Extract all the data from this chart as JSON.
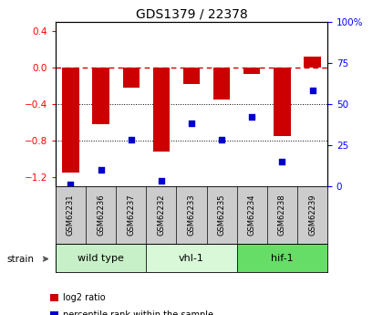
{
  "title": "GDS1379 / 22378",
  "samples": [
    "GSM62231",
    "GSM62236",
    "GSM62237",
    "GSM62232",
    "GSM62233",
    "GSM62235",
    "GSM62234",
    "GSM62238",
    "GSM62239"
  ],
  "log2_ratios": [
    -1.15,
    -0.62,
    -0.22,
    -0.92,
    -0.18,
    -0.35,
    -0.07,
    -0.75,
    0.12
  ],
  "percentile_ranks": [
    1,
    10,
    28,
    3,
    38,
    28,
    42,
    15,
    58
  ],
  "groups": [
    {
      "label": "wild type",
      "start": 0,
      "end": 3,
      "color": "#c8f0c8"
    },
    {
      "label": "vhl-1",
      "start": 3,
      "end": 6,
      "color": "#d8f8d8"
    },
    {
      "label": "hif-1",
      "start": 6,
      "end": 9,
      "color": "#66dd66"
    }
  ],
  "bar_color": "#cc0000",
  "dot_color": "#0000cc",
  "ylim_left": [
    -1.3,
    0.5
  ],
  "ylim_right": [
    0,
    100
  ],
  "yticks_left": [
    -1.2,
    -0.8,
    -0.4,
    0.0,
    0.4
  ],
  "yticks_right": [
    0,
    25,
    50,
    75,
    100
  ],
  "dotted_lines": [
    -0.4,
    -0.8
  ],
  "bar_width": 0.55,
  "sample_bg": "#cccccc",
  "legend_labels": [
    "log2 ratio",
    "percentile rank within the sample"
  ],
  "legend_colors": [
    "#cc0000",
    "#0000cc"
  ]
}
